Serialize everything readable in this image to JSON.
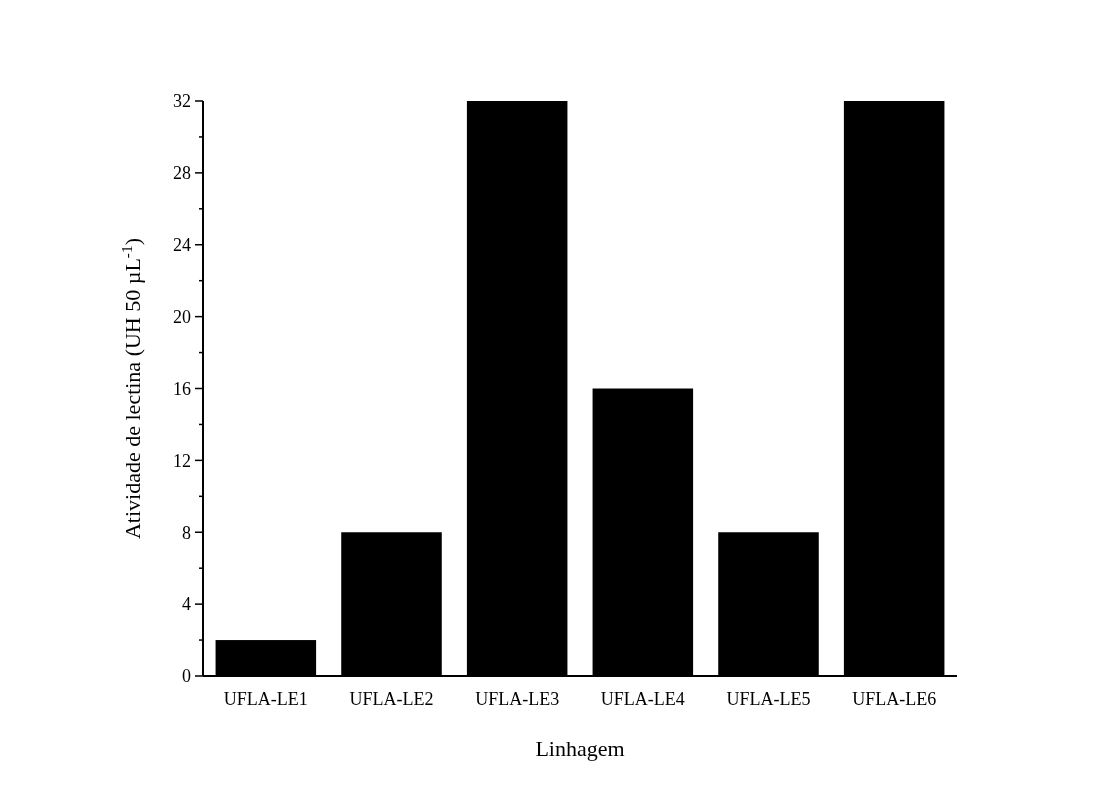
{
  "chart_data": {
    "type": "bar",
    "categories": [
      "UFLA-LE1",
      "UFLA-LE2",
      "UFLA-LE3",
      "UFLA-LE4",
      "UFLA-LE5",
      "UFLA-LE6"
    ],
    "values": [
      2,
      8,
      32,
      16,
      8,
      32
    ],
    "color": "#000000",
    "xlabel": "Linhagem",
    "ylabel": "Atividade de lectina (UH 50 µL$^{-1}$)",
    "ylim": [
      0,
      32
    ],
    "yticks": [
      0,
      {
        "value": 2,
        "label": null
      },
      4,
      {
        "value": 6,
        "label": null
      },
      8,
      {
        "value": 10,
        "label": null
      },
      12,
      {
        "value": 14,
        "label": null
      },
      16,
      {
        "value": 18,
        "label": null
      },
      20,
      {
        "value": 22,
        "label": null
      },
      24,
      {
        "value": 26,
        "label": null
      },
      28,
      {
        "value": 30,
        "label": null
      },
      32
    ],
    "grid": false
  }
}
